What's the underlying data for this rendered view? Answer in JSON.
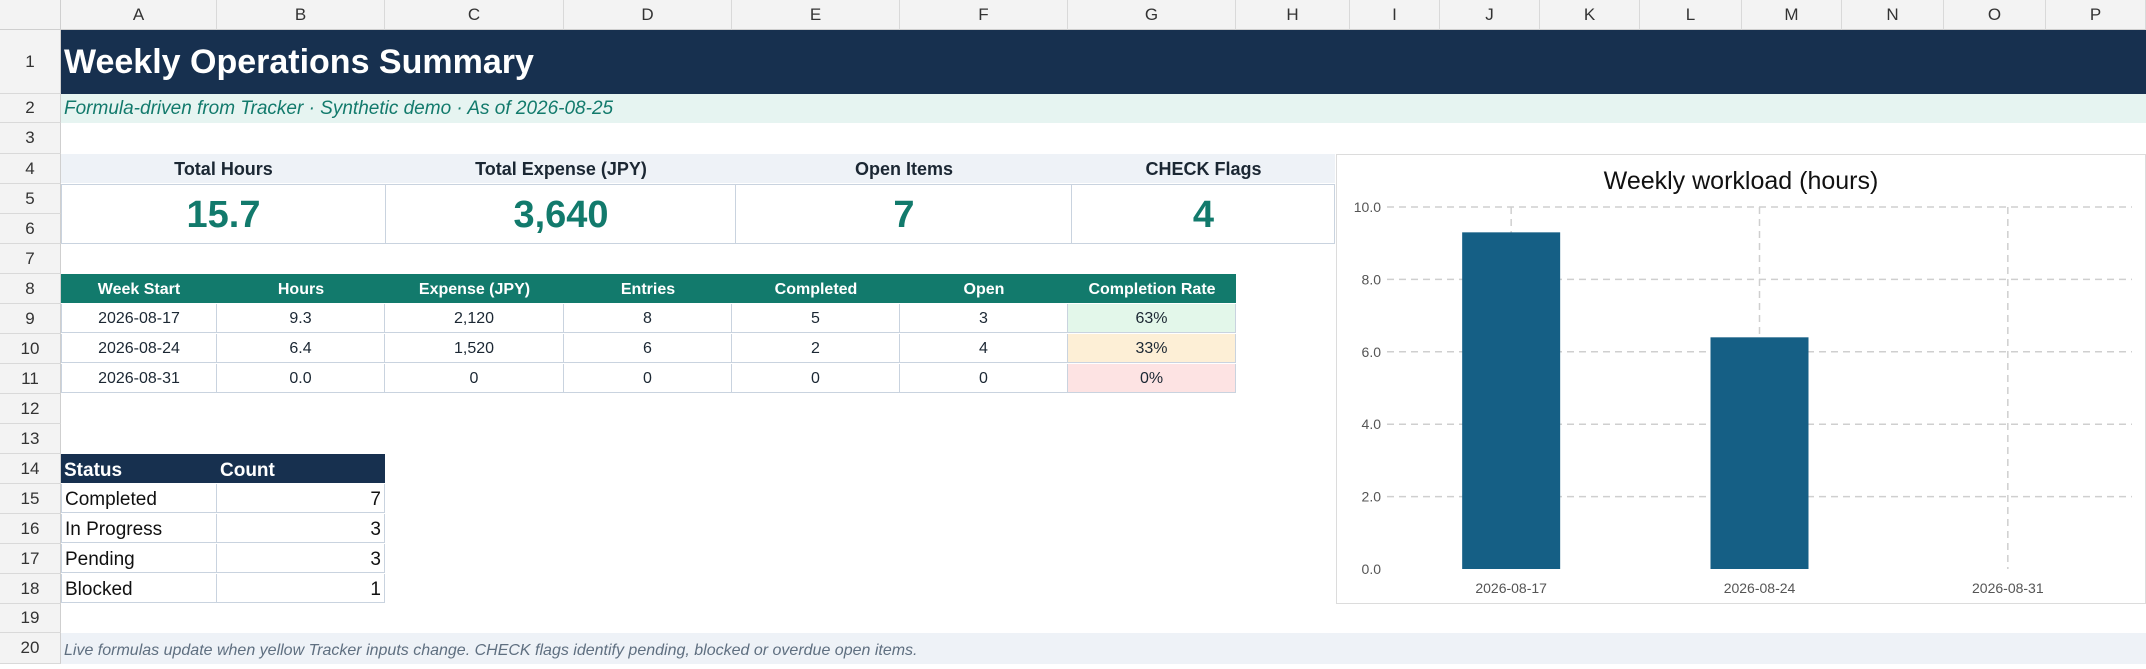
{
  "columns": [
    "A",
    "B",
    "C",
    "D",
    "E",
    "F",
    "G",
    "H",
    "I",
    "J",
    "K",
    "L",
    "M",
    "N",
    "O",
    "P"
  ],
  "rows": [
    "1",
    "2",
    "3",
    "4",
    "5",
    "6",
    "7",
    "8",
    "9",
    "10",
    "11",
    "12",
    "13",
    "14",
    "15",
    "16",
    "17",
    "18",
    "19",
    "20"
  ],
  "title": "Weekly Operations Summary",
  "subtitle": "Formula-driven from Tracker · Synthetic demo · As of 2026-08-25",
  "kpis": [
    {
      "label": "Total Hours",
      "value": "15.7"
    },
    {
      "label": "Total Expense (JPY)",
      "value": "3,640"
    },
    {
      "label": "Open Items",
      "value": "7"
    },
    {
      "label": "CHECK Flags",
      "value": "4"
    }
  ],
  "weekly_table": {
    "headers": [
      "Week Start",
      "Hours",
      "Expense (JPY)",
      "Entries",
      "Completed",
      "Open",
      "Completion Rate"
    ],
    "rows": [
      [
        "2026-08-17",
        "9.3",
        "2,120",
        "8",
        "5",
        "3",
        "63%"
      ],
      [
        "2026-08-24",
        "6.4",
        "1,520",
        "6",
        "2",
        "4",
        "33%"
      ],
      [
        "2026-08-31",
        "0.0",
        "0",
        "0",
        "0",
        "0",
        "0%"
      ]
    ],
    "rate_colors": [
      "#e3f7ea",
      "#fdefd6",
      "#fde3e3"
    ]
  },
  "status_table": {
    "headers": [
      "Status",
      "Count"
    ],
    "rows": [
      [
        "Completed",
        "7"
      ],
      [
        "In Progress",
        "3"
      ],
      [
        "Pending",
        "3"
      ],
      [
        "Blocked",
        "1"
      ]
    ]
  },
  "footer": "Live formulas update when yellow Tracker inputs change. CHECK flags identify pending, blocked or overdue open items.",
  "colors": {
    "header_navy": "#17304f",
    "teal": "#127a6c",
    "bar": "#155f85"
  },
  "chart_data": {
    "type": "bar",
    "title": "Weekly workload (hours)",
    "categories": [
      "2026-08-17",
      "2026-08-24",
      "2026-08-31"
    ],
    "values": [
      9.3,
      6.4,
      0.0
    ],
    "ylim": [
      0,
      10
    ],
    "yticks": [
      "0.0",
      "2.0",
      "4.0",
      "6.0",
      "8.0",
      "10.0"
    ],
    "grid": true,
    "legend": "none"
  }
}
